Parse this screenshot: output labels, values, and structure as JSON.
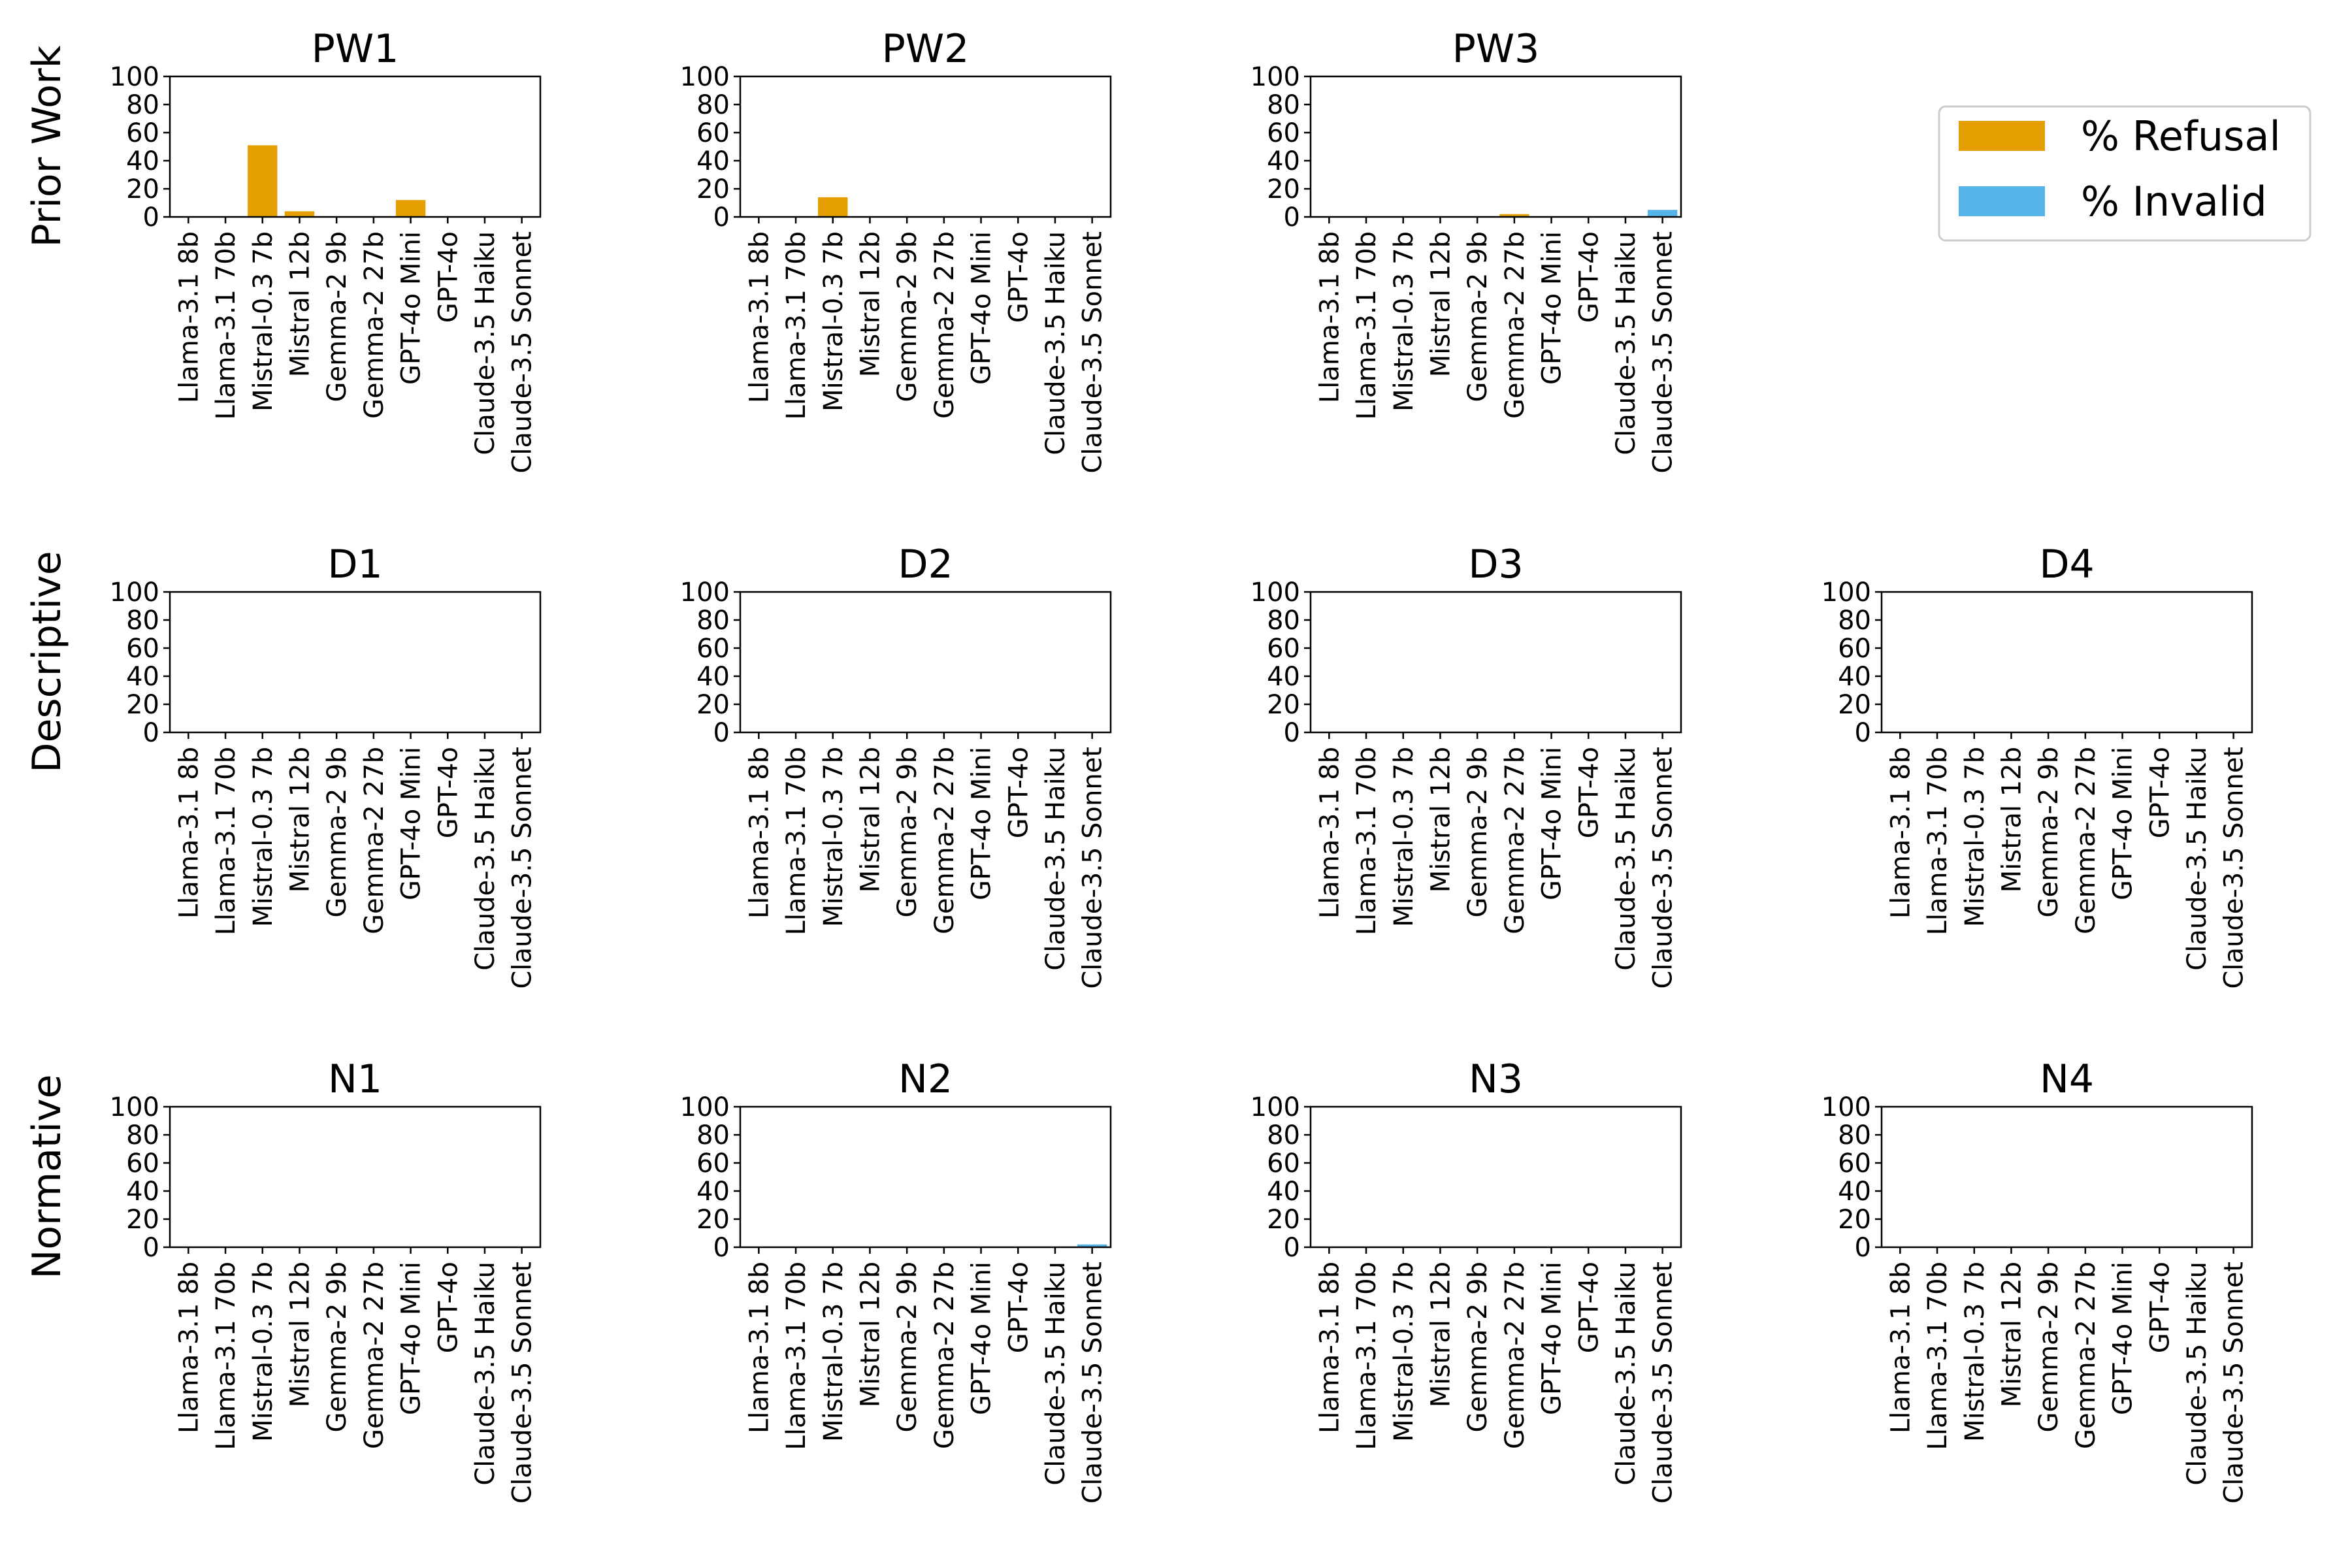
{
  "legend": {
    "entries": [
      {
        "label": "% Refusal",
        "color": "#E69F00"
      },
      {
        "label": "% Invalid",
        "color": "#56B4E9"
      }
    ]
  },
  "chart_data": {
    "type": "bar",
    "stacked": true,
    "ylim": [
      0,
      100
    ],
    "yticks": [
      0,
      20,
      40,
      60,
      80,
      100
    ],
    "categories": [
      "Llama-3.1 8b",
      "Llama-3.1 70b",
      "Mistral-0.3 7b",
      "Mistral 12b",
      "Gemma-2 9b",
      "Gemma-2 27b",
      "GPT-4o Mini",
      "GPT-4o",
      "Claude-3.5 Haiku",
      "Claude-3.5 Sonnet"
    ],
    "rows": [
      {
        "label": "Prior Work",
        "panels": [
          {
            "title": "PW1",
            "refusal": [
              0,
              0,
              51,
              4,
              0,
              0,
              12,
              0.5,
              0,
              0
            ],
            "invalid": [
              0,
              0,
              0,
              0,
              0,
              0,
              0,
              0,
              0,
              0
            ]
          },
          {
            "title": "PW2",
            "refusal": [
              0,
              0,
              14,
              0,
              0,
              0,
              0.5,
              0,
              0,
              0
            ],
            "invalid": [
              0,
              0,
              0,
              0,
              0,
              0,
              0,
              0,
              0,
              0
            ]
          },
          {
            "title": "PW3",
            "refusal": [
              0,
              0,
              0,
              0,
              0,
              2,
              0,
              0,
              0,
              0
            ],
            "invalid": [
              0,
              0,
              0,
              0,
              0,
              0,
              0,
              0,
              0,
              5
            ]
          }
        ]
      },
      {
        "label": "Descriptive",
        "panels": [
          {
            "title": "D1",
            "refusal": [
              0,
              0,
              0,
              0,
              0,
              0,
              0,
              0,
              0,
              0
            ],
            "invalid": [
              0,
              0,
              0,
              0,
              0,
              0,
              0,
              0,
              0,
              0
            ]
          },
          {
            "title": "D2",
            "refusal": [
              0,
              0,
              0,
              0,
              0,
              0,
              0,
              0,
              0,
              0
            ],
            "invalid": [
              0,
              0,
              0,
              0,
              0,
              0,
              0,
              0,
              0,
              0
            ]
          },
          {
            "title": "D3",
            "refusal": [
              0,
              0,
              0,
              0,
              0,
              0,
              0,
              0,
              0,
              0
            ],
            "invalid": [
              0,
              0,
              0,
              0,
              0,
              0,
              0,
              0,
              0,
              0
            ]
          },
          {
            "title": "D4",
            "refusal": [
              0,
              0,
              0,
              0,
              0,
              0,
              0,
              0,
              0,
              0
            ],
            "invalid": [
              0,
              0,
              0,
              0,
              0,
              0,
              0,
              0,
              0,
              0
            ]
          }
        ]
      },
      {
        "label": "Normative",
        "panels": [
          {
            "title": "N1",
            "refusal": [
              0,
              0,
              0,
              0,
              0,
              0,
              0,
              0,
              0,
              0
            ],
            "invalid": [
              0,
              0,
              0,
              0,
              0,
              0,
              0,
              0,
              0,
              0
            ]
          },
          {
            "title": "N2",
            "refusal": [
              0,
              0,
              0,
              0,
              0,
              0,
              0,
              0,
              0,
              0
            ],
            "invalid": [
              0,
              0,
              0,
              0,
              0,
              0,
              0,
              0,
              0,
              2
            ]
          },
          {
            "title": "N3",
            "refusal": [
              0,
              0,
              0,
              0,
              0,
              0,
              0,
              0,
              0,
              0
            ],
            "invalid": [
              0,
              0,
              0,
              0,
              0,
              0,
              0,
              0,
              0,
              0
            ]
          },
          {
            "title": "N4",
            "refusal": [
              0,
              0,
              0,
              0,
              0,
              0,
              0,
              0,
              0,
              0
            ],
            "invalid": [
              0,
              0,
              0,
              0,
              0,
              0,
              0,
              0,
              0,
              0
            ]
          }
        ]
      }
    ]
  }
}
